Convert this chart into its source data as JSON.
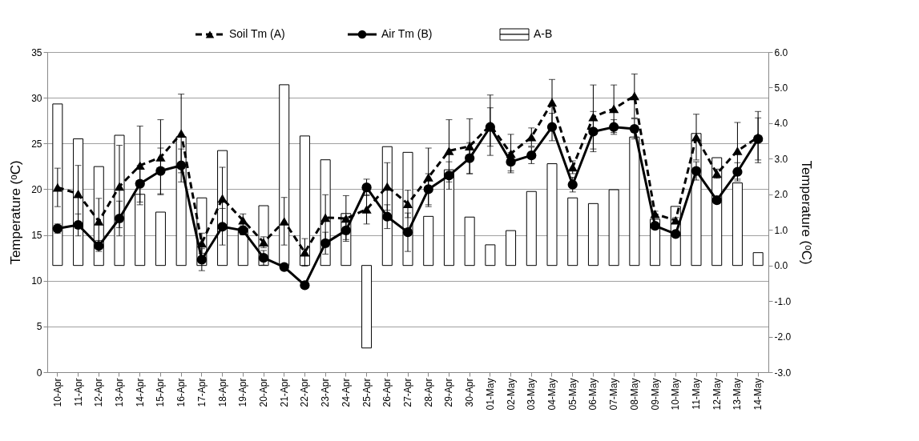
{
  "chart_data": {
    "type": "line",
    "categories": [
      "10-Apr",
      "11-Apr",
      "12-Apr",
      "13-Apr",
      "14-Apr",
      "15-Apr",
      "16-Apr",
      "17-Apr",
      "18-Apr",
      "19-Apr",
      "20-Apr",
      "21-Apr",
      "22-Apr",
      "23-Apr",
      "24-Apr",
      "25-Apr",
      "26-Apr",
      "27-Apr",
      "28-Apr",
      "29-Apr",
      "30-Apr",
      "01-May",
      "02-May",
      "03-May",
      "04-May",
      "05-May",
      "06-May",
      "07-May",
      "08-May",
      "09-May",
      "10-May",
      "11-May",
      "12-May",
      "13-May",
      "14-May"
    ],
    "ylabel": "Temperature (ᵒC)",
    "y2label": "Temperature (ᵒC)",
    "ylim": [
      0,
      35
    ],
    "yticks": [
      0,
      5,
      10,
      15,
      20,
      25,
      30,
      35
    ],
    "y2lim": [
      -3,
      6
    ],
    "y2ticks": [
      {
        "value": -3,
        "label": "-3.0"
      },
      {
        "value": -2,
        "label": "-2.0"
      },
      {
        "value": -1,
        "label": "-1.0"
      },
      {
        "value": 0,
        "label": "0.0"
      },
      {
        "value": 1,
        "label": "1.0"
      },
      {
        "value": 2,
        "label": "2.0"
      },
      {
        "value": 3,
        "label": "3.0"
      },
      {
        "value": 4,
        "label": "4.0"
      },
      {
        "value": 5,
        "label": "5.0"
      },
      {
        "value": 6,
        "label": "6.0"
      }
    ],
    "grid": "y",
    "legend": "top",
    "series": [
      {
        "name": "Soil Tm (A)",
        "color": "#000000",
        "marker": "triangle",
        "line_style": "dashed",
        "values": [
          20.2,
          19.5,
          16.5,
          20.3,
          22.6,
          23.5,
          26.1,
          14.1,
          19.0,
          16.6,
          14.2,
          16.5,
          13.1,
          16.9,
          16.8,
          17.8,
          20.3,
          18.4,
          21.3,
          24.2,
          24.7,
          27.0,
          23.9,
          25.7,
          29.5,
          22.4,
          27.9,
          28.8,
          30.2,
          17.3,
          16.6,
          25.7,
          21.7,
          24.2,
          25.7
        ],
        "errors": [
          2.1,
          3.1,
          2.5,
          4.5,
          4.3,
          4.1,
          4.3,
          1.1,
          3.4,
          0.7,
          0.6,
          2.6,
          1.5,
          2.5,
          2.5,
          1.6,
          2.6,
          1.5,
          3.2,
          3.4,
          3.0,
          3.3,
          2.1,
          1.0,
          2.5,
          0.7,
          3.5,
          2.6,
          2.4,
          0.3,
          0.3,
          2.5,
          0.5,
          3.1,
          2.8
        ]
      },
      {
        "name": "Air Tm (B)",
        "color": "#000000",
        "marker": "circle",
        "line_style": "solid",
        "values": [
          15.7,
          16.1,
          13.8,
          16.8,
          20.6,
          22.0,
          22.6,
          12.3,
          15.9,
          15.5,
          12.5,
          11.5,
          9.5,
          14.1,
          15.5,
          20.2,
          17.0,
          15.3,
          20.0,
          21.5,
          23.4,
          26.8,
          23.0,
          23.7,
          26.8,
          20.5,
          26.3,
          26.8,
          26.6,
          16.0,
          15.1,
          22.0,
          18.8,
          21.9,
          25.5
        ],
        "errors": [
          0.5,
          1.2,
          0.6,
          1.9,
          2.0,
          2.5,
          1.8,
          1.2,
          2.0,
          0.5,
          0.8,
          null,
          null,
          1.2,
          1.0,
          0.9,
          1.3,
          2.1,
          1.7,
          1.5,
          1.7,
          2.1,
          1.0,
          0.9,
          1.5,
          0.8,
          2.2,
          0.8,
          1.1,
          null,
          null,
          1.0,
          null,
          1.0,
          2.3
        ]
      },
      {
        "name": "A-B",
        "type": "bar",
        "axis": "y2",
        "color": "#ffffff",
        "values": [
          4.54,
          3.56,
          2.78,
          3.66,
          2.0,
          1.5,
          3.62,
          1.9,
          3.23,
          1.05,
          1.68,
          5.08,
          3.64,
          2.97,
          1.46,
          -2.32,
          3.34,
          3.18,
          1.38,
          2.69,
          1.36,
          0.58,
          0.98,
          2.08,
          2.86,
          1.9,
          1.74,
          2.13,
          3.61,
          1.3,
          1.66,
          3.71,
          3.03,
          2.32,
          0.36
        ]
      }
    ]
  }
}
